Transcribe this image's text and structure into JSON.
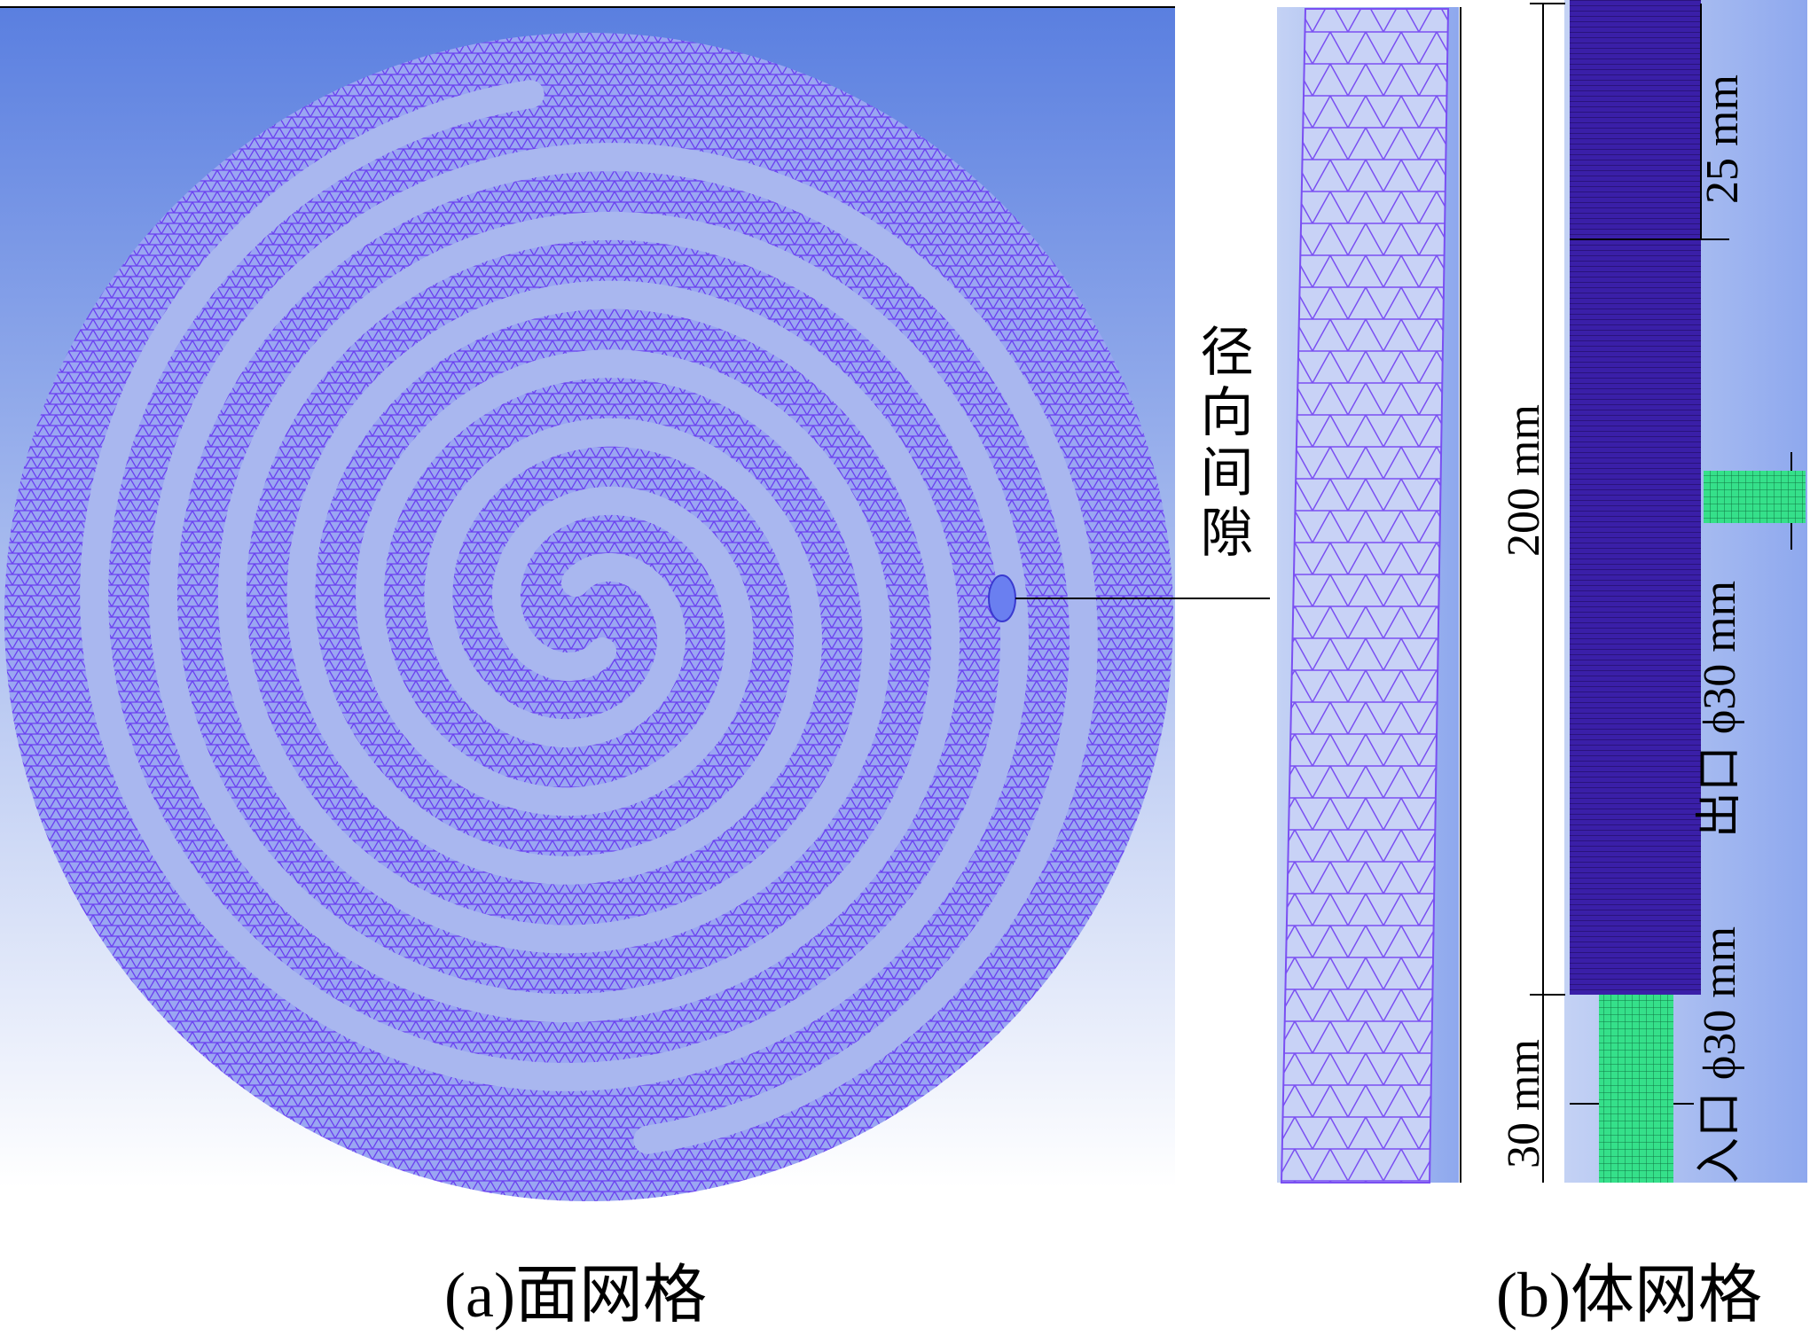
{
  "panel_a": {
    "gap_label": "径向间隙",
    "caption": "(a)面网格"
  },
  "panel_b": {
    "caption": "(b)体网格",
    "dimensions": {
      "top_offset": "25 mm",
      "height": "200 mm",
      "outlet": "出口 ϕ30 mm",
      "inlet": "入口 ϕ30 mm",
      "inlet_length": "30 mm"
    }
  }
}
